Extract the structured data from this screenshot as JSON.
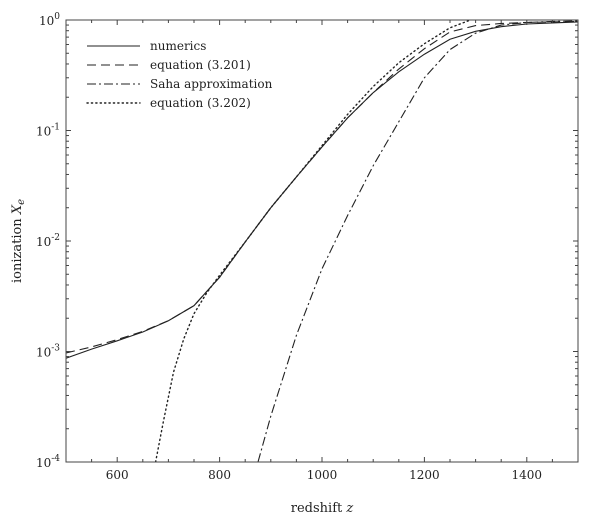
{
  "chart_data": {
    "type": "line",
    "title": "",
    "xlabel": "redshift",
    "xlabel_var": "z",
    "ylabel": "ionization",
    "ylabel_var": "X",
    "ylabel_sub": "e",
    "xlim": [
      500,
      1500
    ],
    "ylim": [
      0.0001,
      1
    ],
    "yscale": "log",
    "grid": false,
    "legend_position": "top-left",
    "x_ticks": [
      {
        "value": 600,
        "label": "600"
      },
      {
        "value": 800,
        "label": "800"
      },
      {
        "value": 1000,
        "label": "1000"
      },
      {
        "value": 1200,
        "label": "1200"
      },
      {
        "value": 1400,
        "label": "1400"
      }
    ],
    "y_ticks": [
      {
        "value": 0.0001,
        "base": "10",
        "exp": "-4"
      },
      {
        "value": 0.001,
        "base": "10",
        "exp": "-3"
      },
      {
        "value": 0.01,
        "base": "10",
        "exp": "-2"
      },
      {
        "value": 0.1,
        "base": "10",
        "exp": "-1"
      },
      {
        "value": 1,
        "base": "10",
        "exp": "0"
      }
    ],
    "series": [
      {
        "name": "numerics",
        "style": "solid",
        "color": "#222222",
        "x": [
          500,
          550,
          600,
          650,
          700,
          750,
          800,
          850,
          900,
          950,
          1000,
          1050,
          1100,
          1150,
          1200,
          1250,
          1300,
          1350,
          1400,
          1450,
          1500
        ],
        "y": [
          0.00087,
          0.00105,
          0.00125,
          0.0015,
          0.0019,
          0.0026,
          0.0047,
          0.0098,
          0.02,
          0.038,
          0.071,
          0.13,
          0.22,
          0.34,
          0.49,
          0.67,
          0.79,
          0.87,
          0.92,
          0.94,
          0.96
        ]
      },
      {
        "name": "equation (3.201)",
        "style": "dashed",
        "color": "#222222",
        "x": [
          500,
          550,
          600,
          650,
          700,
          750,
          800,
          850,
          900,
          950,
          1000,
          1050,
          1100,
          1150,
          1200,
          1250,
          1300,
          1350,
          1400,
          1450,
          1500
        ],
        "y": [
          0.00097,
          0.0011,
          0.00128,
          0.00152,
          0.0019,
          0.0026,
          0.0047,
          0.0098,
          0.02,
          0.038,
          0.071,
          0.13,
          0.22,
          0.36,
          0.55,
          0.78,
          0.89,
          0.93,
          0.95,
          0.96,
          0.97
        ]
      },
      {
        "name": "Saha approximation",
        "style": "dashdot",
        "color": "#222222",
        "x": [
          875,
          900,
          950,
          1000,
          1050,
          1100,
          1150,
          1200,
          1250,
          1300,
          1350,
          1400,
          1450,
          1500
        ],
        "y": [
          0.0001,
          0.00026,
          0.0014,
          0.0056,
          0.017,
          0.048,
          0.12,
          0.3,
          0.54,
          0.76,
          0.9,
          0.95,
          0.97,
          0.98
        ]
      },
      {
        "name": "equation (3.202)",
        "style": "dotted",
        "color": "#222222",
        "x": [
          675,
          690,
          710,
          730,
          750,
          775,
          800,
          850,
          900,
          950,
          1000,
          1050,
          1100,
          1150,
          1200,
          1250,
          1290
        ],
        "y": [
          0.0001,
          0.00023,
          0.00065,
          0.0013,
          0.0022,
          0.0034,
          0.0049,
          0.0098,
          0.02,
          0.038,
          0.073,
          0.14,
          0.25,
          0.41,
          0.61,
          0.85,
          1.0
        ]
      }
    ]
  }
}
